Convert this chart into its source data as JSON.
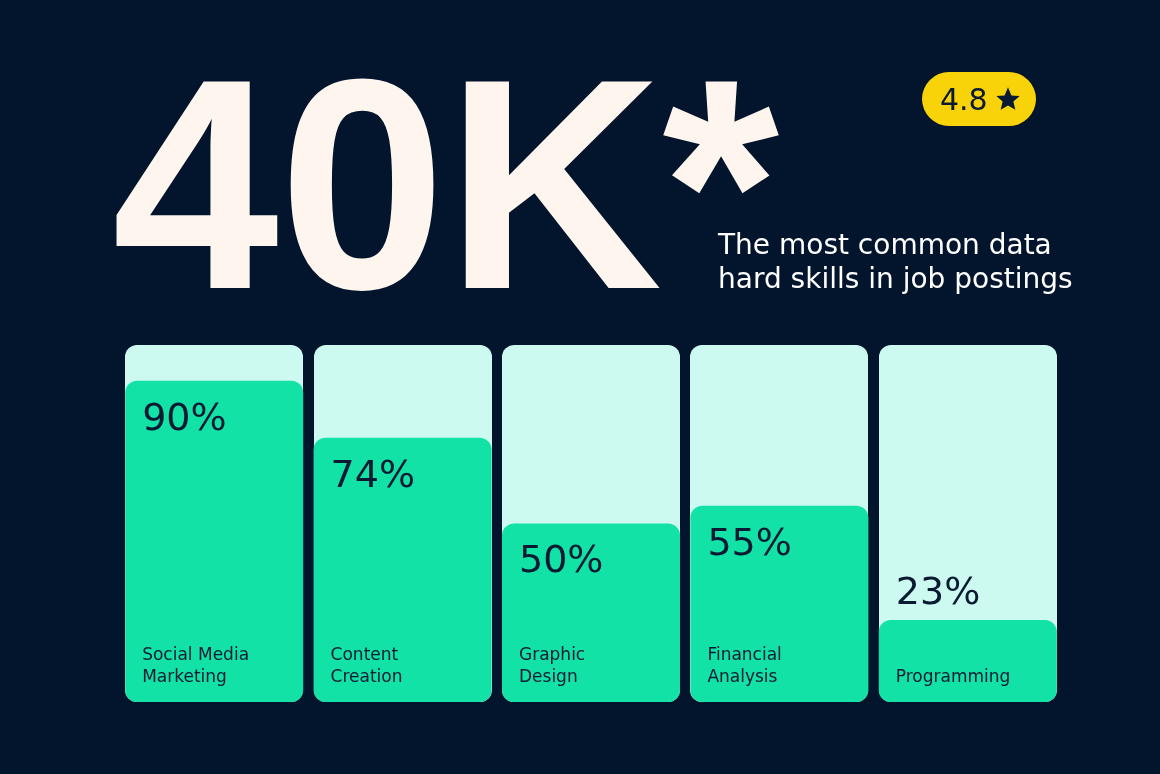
{
  "chart_data": {
    "type": "bar",
    "title": "40K*",
    "subtitle": "The most common data hard skills in job postings",
    "annotations": [
      "4.8"
    ],
    "categories": [
      "Social Media Marketing",
      "Content Creation",
      "Graphic Design",
      "Financial Analysis",
      "Programming"
    ],
    "values": [
      90,
      74,
      50,
      55,
      23
    ],
    "color": "#13e2a6",
    "value_labels": [
      "90%",
      "74%",
      "50%",
      "55%",
      "23%"
    ]
  }
}
